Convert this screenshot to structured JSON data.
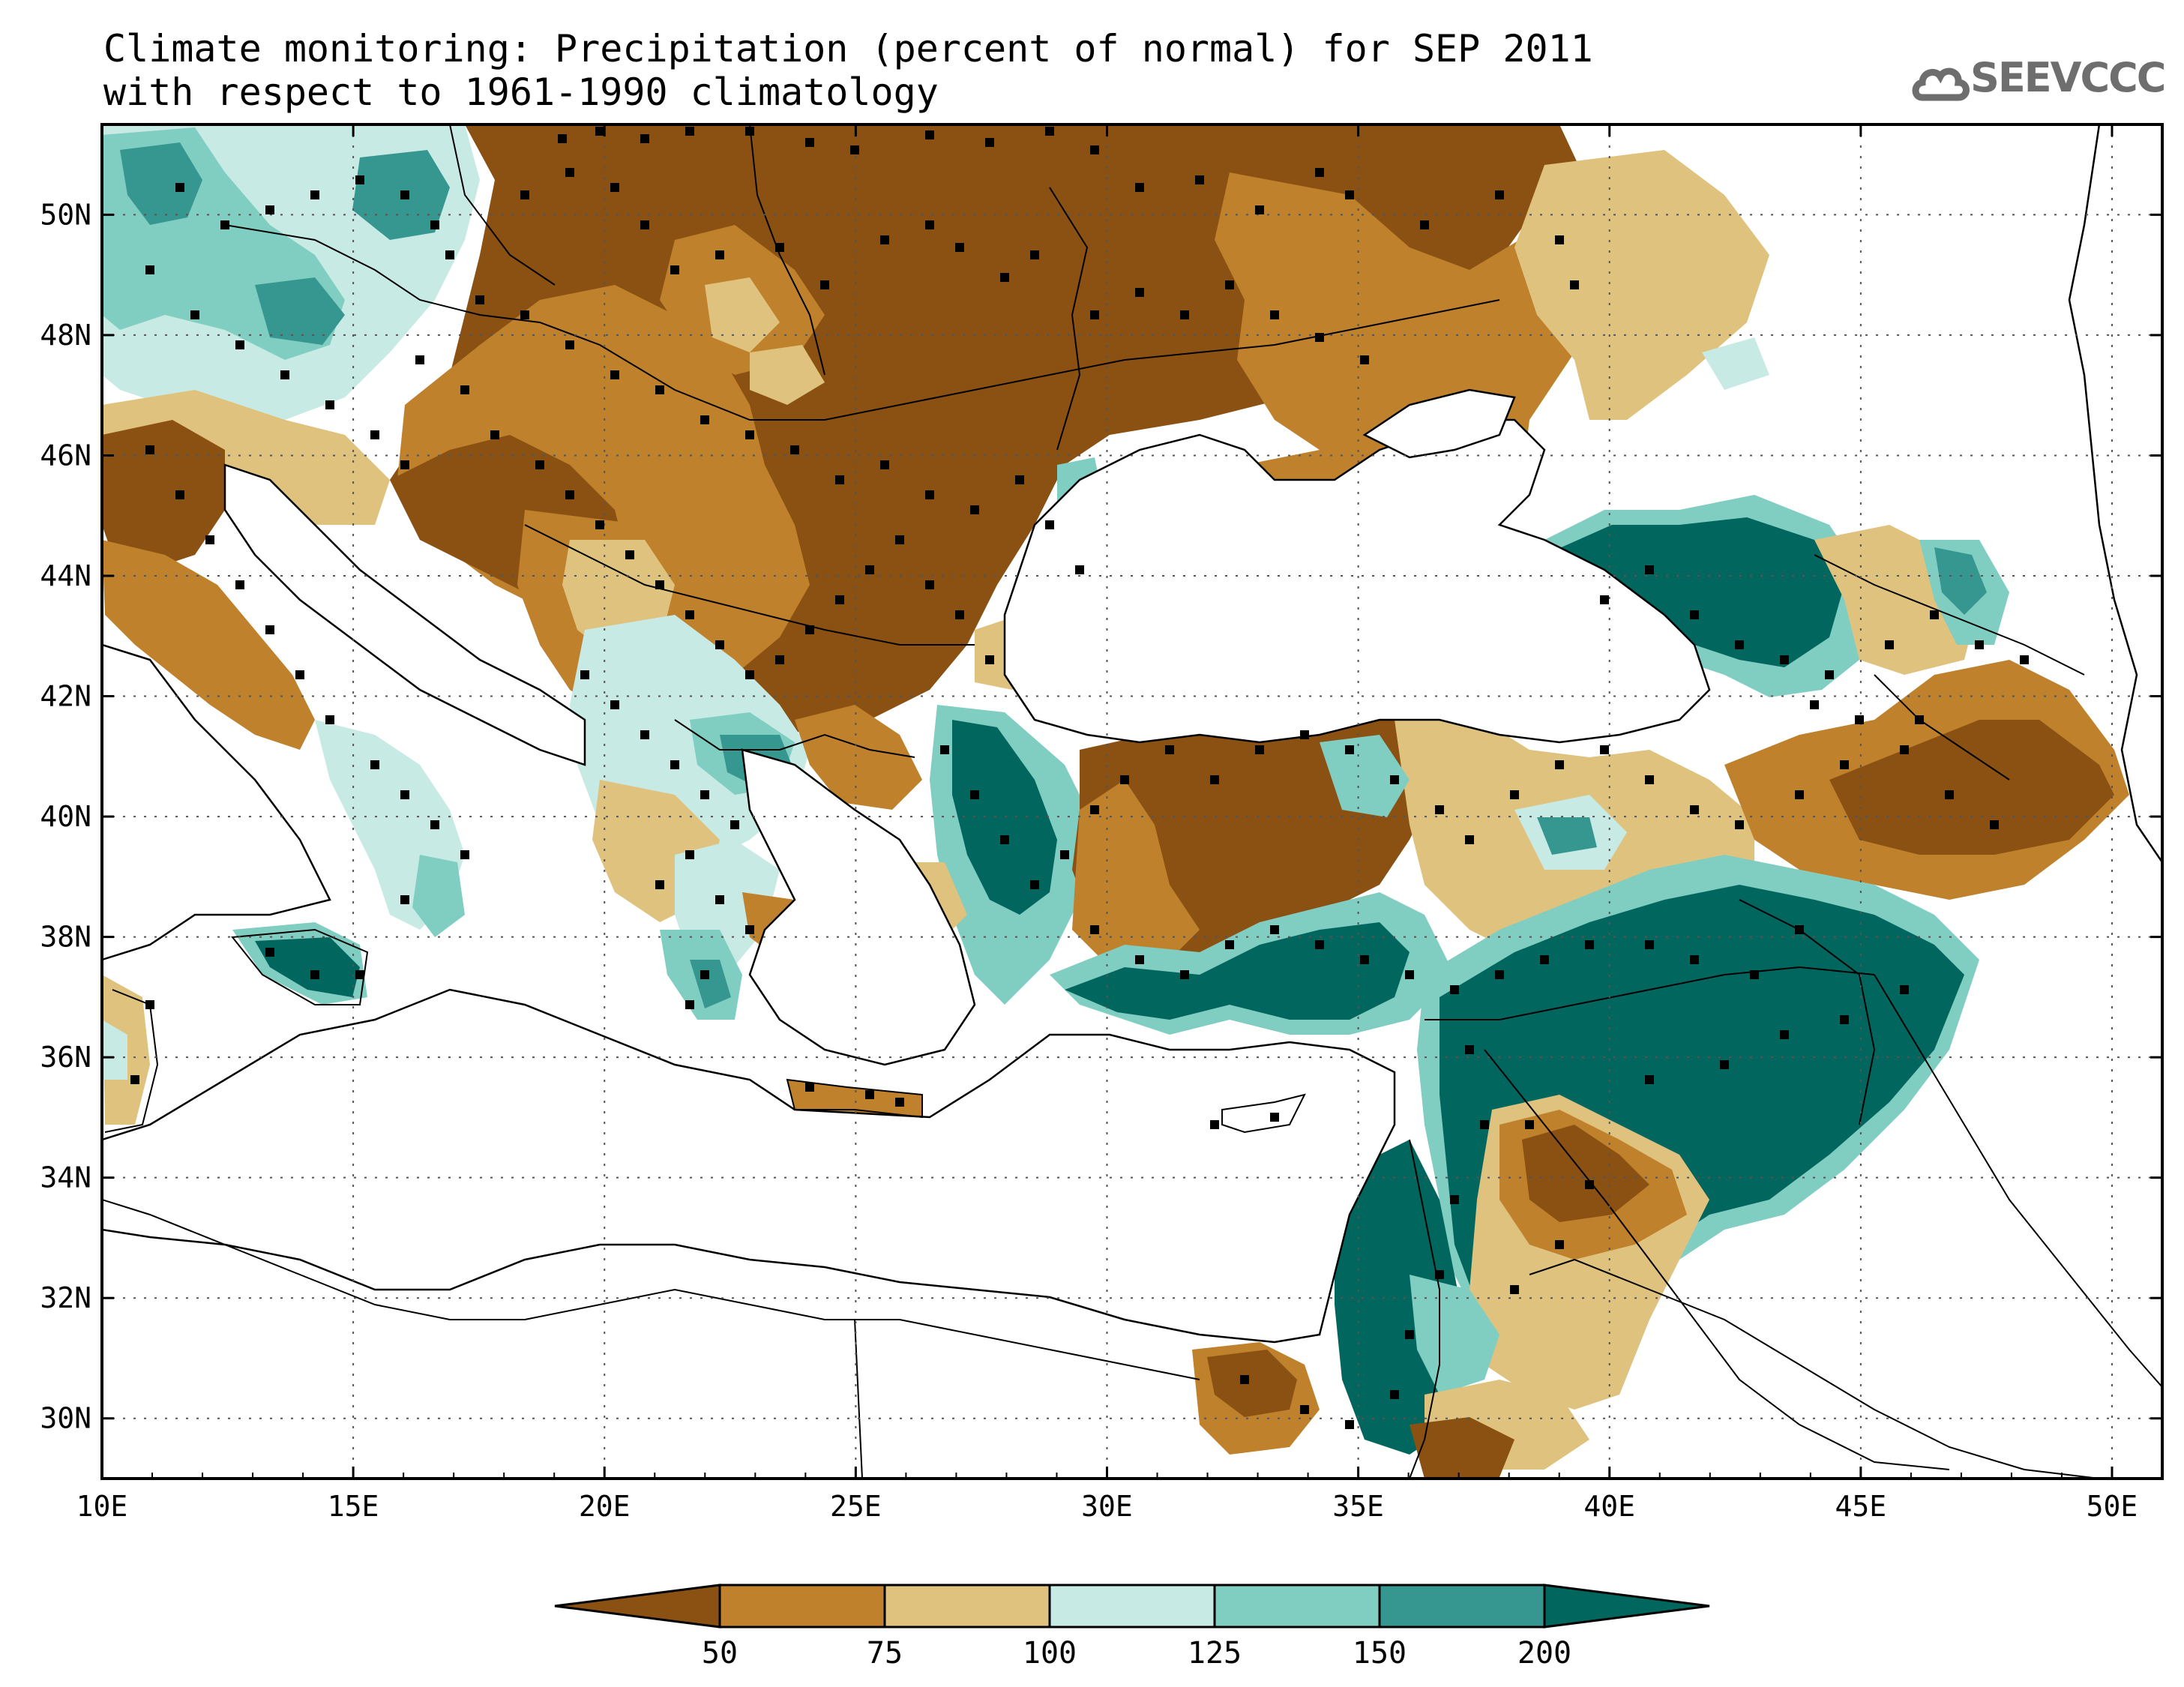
{
  "title": {
    "line1": "Climate monitoring: Precipitation (percent of normal) for SEP 2011",
    "line2": "with respect to 1961-1990 climatology"
  },
  "logo": {
    "text": "SEEVCCC",
    "icon": "cloud-icon"
  },
  "map": {
    "lon_range": [
      10,
      51
    ],
    "lat_range": [
      29,
      51.5
    ],
    "lon_ticks": [
      "10E",
      "15E",
      "20E",
      "25E",
      "30E",
      "35E",
      "40E",
      "45E",
      "50E"
    ],
    "lat_ticks": [
      "30N",
      "32N",
      "34N",
      "36N",
      "38N",
      "40N",
      "42N",
      "44N",
      "46N",
      "48N",
      "50N"
    ],
    "grid": "dotted"
  },
  "colorbar": {
    "labels": [
      "50",
      "75",
      "100",
      "125",
      "150",
      "200"
    ],
    "colors": [
      "#8b5113",
      "#bf812c",
      "#dfc27d",
      "#c7eae5",
      "#80cdc1",
      "#35978f",
      "#01665e"
    ]
  }
}
